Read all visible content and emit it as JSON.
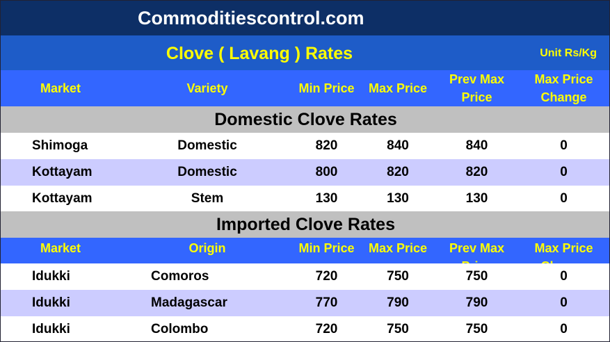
{
  "header": {
    "site": "Commoditiescontrol.com",
    "title": "Clove ( Lavang ) Rates",
    "unit": "Unit Rs/Kg"
  },
  "sections": [
    {
      "columns": [
        "Market",
        "Variety",
        "Min Price",
        "Max Price",
        "Prev Max Price",
        "Max Price Change"
      ],
      "title": "Domestic Clove Rates",
      "rows": [
        [
          "Shimoga",
          "Domestic",
          "820",
          "840",
          "840",
          "0"
        ],
        [
          "Kottayam",
          "Domestic",
          "800",
          "820",
          "820",
          "0"
        ],
        [
          "Kottayam",
          "Stem",
          "130",
          "130",
          "130",
          "0"
        ]
      ]
    },
    {
      "title": "Imported Clove Rates",
      "columns": [
        "Market",
        "Origin",
        "Min Price",
        "Max Price",
        "Prev Max Price",
        "Max Price Change"
      ],
      "rows": [
        [
          "Idukki",
          "Comoros",
          "720",
          "750",
          "750",
          "0"
        ],
        [
          "Idukki",
          "Madagascar",
          "770",
          "790",
          "790",
          "0"
        ],
        [
          "Idukki",
          "Colombo",
          "720",
          "750",
          "750",
          "0"
        ]
      ]
    }
  ]
}
